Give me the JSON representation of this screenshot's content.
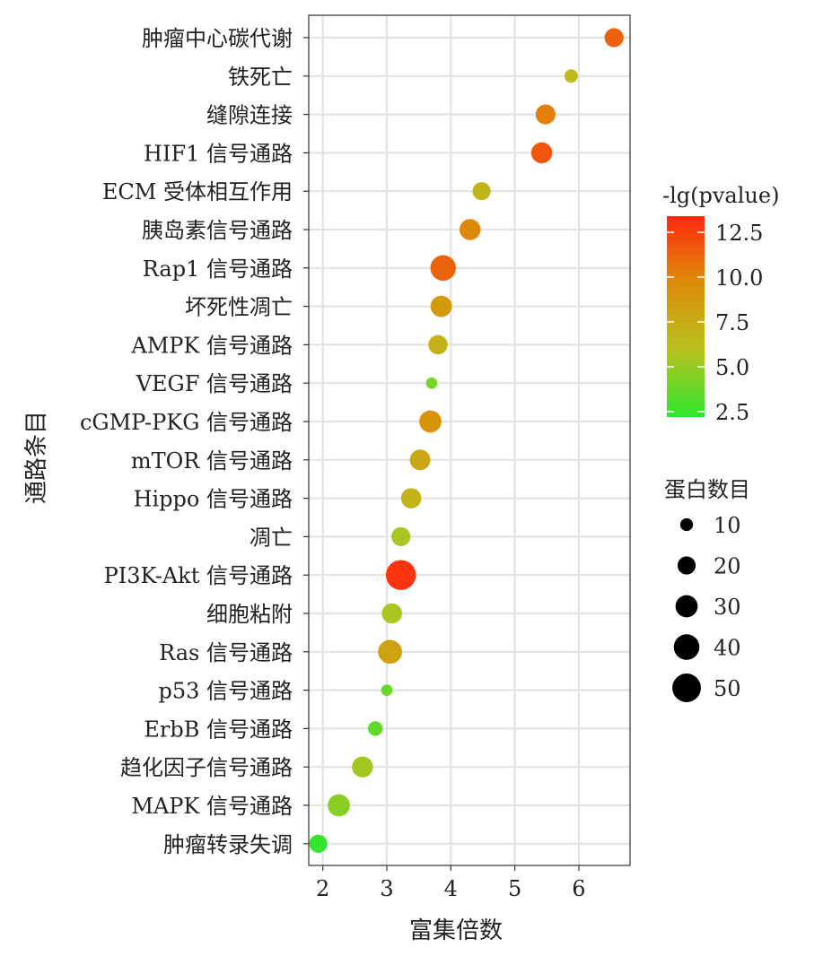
{
  "chart_data": {
    "type": "scatter",
    "title": "",
    "xlabel": "富集倍数",
    "ylabel": "通路条目",
    "xlim": [
      1.78,
      6.8
    ],
    "xticks": [
      2,
      3,
      4,
      5,
      6
    ],
    "grid": true,
    "points": [
      {
        "pathway": "肿瘤中心碳代谢",
        "fold": 6.55,
        "count": 22,
        "neglogp": 11.3
      },
      {
        "pathway": "铁死亡",
        "fold": 5.88,
        "count": 11,
        "neglogp": 6.5
      },
      {
        "pathway": "缝隙连接",
        "fold": 5.48,
        "count": 24,
        "neglogp": 10.2
      },
      {
        "pathway": "HIF1 信号通路",
        "fold": 5.42,
        "count": 27,
        "neglogp": 11.8
      },
      {
        "pathway": "ECM 受体相互作用",
        "fold": 4.48,
        "count": 20,
        "neglogp": 6.8
      },
      {
        "pathway": "胰岛素信号通路",
        "fold": 4.3,
        "count": 27,
        "neglogp": 9.8
      },
      {
        "pathway": "Rap1 信号通路",
        "fold": 3.88,
        "count": 40,
        "neglogp": 11.2
      },
      {
        "pathway": "坏死性凋亡",
        "fold": 3.85,
        "count": 28,
        "neglogp": 8.8
      },
      {
        "pathway": "AMPK 信号通路",
        "fold": 3.8,
        "count": 23,
        "neglogp": 7.0
      },
      {
        "pathway": "VEGF 信号通路",
        "fold": 3.7,
        "count": 8,
        "neglogp": 4.2
      },
      {
        "pathway": "cGMP-PKG 信号通路",
        "fold": 3.68,
        "count": 30,
        "neglogp": 9.2
      },
      {
        "pathway": "mTOR 信号通路",
        "fold": 3.52,
        "count": 26,
        "neglogp": 7.8
      },
      {
        "pathway": "Hippo 信号通路",
        "fold": 3.38,
        "count": 25,
        "neglogp": 6.9
      },
      {
        "pathway": "凋亡",
        "fold": 3.22,
        "count": 22,
        "neglogp": 5.5
      },
      {
        "pathway": "PI3K-Akt 信号通路",
        "fold": 3.22,
        "count": 55,
        "neglogp": 13.0
      },
      {
        "pathway": "细胞粘附",
        "fold": 3.08,
        "count": 25,
        "neglogp": 5.6
      },
      {
        "pathway": "Ras 信号通路",
        "fold": 3.05,
        "count": 35,
        "neglogp": 8.2
      },
      {
        "pathway": "p53 信号通路",
        "fold": 3.0,
        "count": 8,
        "neglogp": 3.8
      },
      {
        "pathway": "ErbB 信号通路",
        "fold": 2.82,
        "count": 13,
        "neglogp": 3.5
      },
      {
        "pathway": "趋化因子信号通路",
        "fold": 2.62,
        "count": 27,
        "neglogp": 5.3
      },
      {
        "pathway": "MAPK 信号通路",
        "fold": 2.25,
        "count": 30,
        "neglogp": 4.7
      },
      {
        "pathway": "肿瘤转录失调",
        "fold": 1.93,
        "count": 20,
        "neglogp": 2.4
      }
    ],
    "color_legend": {
      "title": "-lg(pvalue)",
      "ticks": [
        "12.5",
        "10.0",
        "7.5",
        "5.0",
        "2.5"
      ],
      "tick_values": [
        12.5,
        10.0,
        7.5,
        5.0,
        2.5
      ],
      "range": [
        2.2,
        13.4
      ],
      "colors": [
        "#2ee62e",
        "#b8c21e",
        "#dd8c08",
        "#ff2a10"
      ]
    },
    "size_legend": {
      "title": "蛋白数目",
      "values": [
        10,
        20,
        30,
        40,
        50
      ],
      "labels": [
        "10",
        "20",
        "30",
        "40",
        "50"
      ]
    }
  }
}
